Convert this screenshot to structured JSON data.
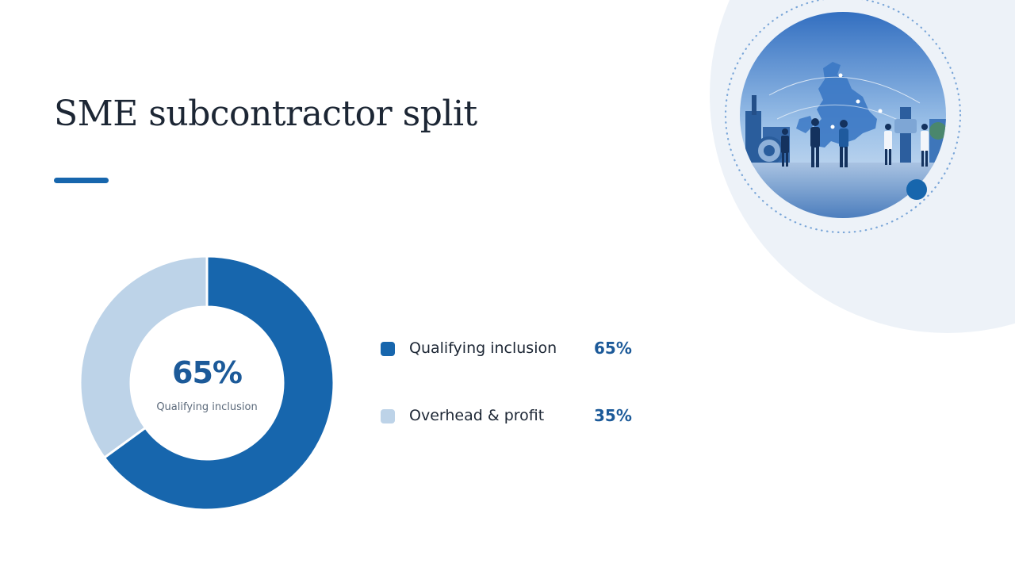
{
  "slide": {
    "title": "SME subcontractor split"
  },
  "chart_data": {
    "type": "pie",
    "variant": "donut",
    "categories": [
      "Qualifying inclusion",
      "Overhead & profit"
    ],
    "values": [
      65,
      35
    ],
    "value_labels": [
      "65%",
      "35%"
    ],
    "colors": [
      "#1766ad",
      "#bdd3e8"
    ],
    "center_value": "65%",
    "center_label": "Qualifying inclusion",
    "legend_position": "right"
  },
  "illustration": {
    "icon": "uk-industry-collaboration-illustration"
  }
}
